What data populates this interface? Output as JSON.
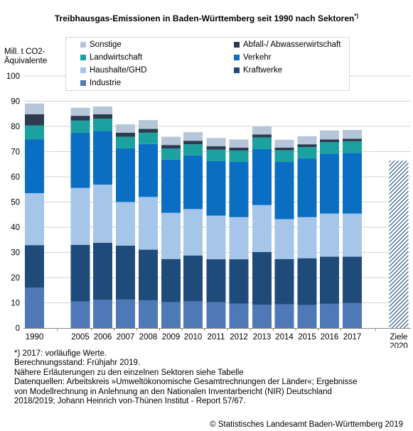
{
  "title": "Treibhausgas-Emissionen in Baden-Württemberg seit 1990 nach Sektoren",
  "title_marker": "*)",
  "chart_data": {
    "type": "bar",
    "stacked": true,
    "title": "Treibhausgas-Emissionen in Baden-Württemberg seit 1990 nach Sektoren*)",
    "ylabel": "Mill. t CO2-\nÄquivalente",
    "xlabel": "",
    "ylim": [
      0,
      100
    ],
    "yticks": [
      0,
      10,
      20,
      30,
      40,
      50,
      60,
      70,
      80,
      90,
      100
    ],
    "grid": true,
    "legend_position": "top",
    "categories": [
      "1990",
      "2005",
      "2006",
      "2007",
      "2008",
      "2009",
      "2010",
      "2011",
      "2012",
      "2013",
      "2014",
      "2015",
      "2016",
      "2017",
      "Ziele\n2020"
    ],
    "series": [
      {
        "name": "Industrie",
        "color": "#4e79b6",
        "values": [
          16.0,
          10.5,
          11.2,
          11.3,
          11.0,
          10.3,
          10.6,
          10.2,
          9.7,
          9.3,
          9.4,
          9.1,
          9.6,
          9.9,
          null
        ]
      },
      {
        "name": "Kraftwerke",
        "color": "#1f4b7a",
        "values": [
          16.9,
          22.5,
          22.6,
          21.4,
          20.1,
          17.1,
          18.2,
          17.1,
          17.6,
          20.9,
          18.0,
          18.6,
          18.7,
          18.4,
          null
        ]
      },
      {
        "name": "Haushalte/GHD",
        "color": "#a6c6e9",
        "values": [
          20.6,
          22.6,
          23.1,
          17.3,
          20.9,
          18.3,
          18.4,
          17.3,
          16.7,
          18.6,
          15.8,
          16.3,
          17.1,
          17.1,
          null
        ]
      },
      {
        "name": "Verkehr",
        "color": "#0a6fc2",
        "values": [
          21.4,
          21.9,
          21.3,
          21.3,
          21.0,
          21.1,
          21.3,
          21.7,
          21.9,
          22.2,
          22.7,
          23.3,
          23.8,
          24.1,
          null
        ]
      },
      {
        "name": "Landwirtschaft",
        "color": "#1ba19f",
        "values": [
          5.5,
          4.8,
          4.9,
          4.6,
          4.5,
          4.4,
          4.4,
          4.5,
          4.5,
          4.6,
          4.6,
          4.5,
          4.6,
          4.6,
          null
        ]
      },
      {
        "name": "Abfall-/ Abwasserwirtschaft",
        "color": "#2e3a4e",
        "values": [
          4.4,
          1.9,
          1.7,
          1.6,
          1.5,
          1.4,
          1.4,
          1.3,
          1.2,
          1.2,
          1.1,
          1.1,
          1.0,
          1.0,
          null
        ]
      },
      {
        "name": "Sonstige",
        "color": "#b4c6d7",
        "values": [
          4.3,
          3.2,
          3.1,
          3.3,
          3.5,
          3.3,
          3.4,
          3.3,
          3.2,
          3.2,
          3.1,
          3.2,
          3.6,
          3.5,
          null
        ]
      }
    ],
    "target_2020": {
      "category": "Ziele\n2020",
      "value": 66.4,
      "pattern": "diagonal-hatch",
      "color": "#1f4b7a"
    }
  },
  "legend": [
    {
      "label": "Sonstige",
      "color": "#b4c6d7"
    },
    {
      "label": "Abfall-/ Abwasserwirtschaft",
      "color": "#2e3a4e"
    },
    {
      "label": "Landwirtschaft",
      "color": "#1ba19f"
    },
    {
      "label": "Verkehr",
      "color": "#0a6fc2"
    },
    {
      "label": "Haushalte/GHD",
      "color": "#a6c6e9"
    },
    {
      "label": "Kraftwerke",
      "color": "#1f4b7a"
    },
    {
      "label": "Industrie",
      "color": "#4e79b6"
    }
  ],
  "notes": [
    "*) 2017: vorläufige Werte.",
    "Berechnungsstand: Frühjahr 2019.",
    "Nähere Erläuterungen zu den einzelnen Sektoren siehe Tabelle",
    "Datenquellen: Arbeitskreis »Umweltökonomische Gesamtrechnungen der Länder«; Ergebnisse",
    "von Modellrechnung in Anlehnung an den Nationalen Inventarbericht (NIR) Deutschland",
    "2018/2019; Johann Heinrich von-Thünen Institut - Report 57/67."
  ],
  "copyright": "© Statistisches Landesamt Baden-Württemberg 2019"
}
